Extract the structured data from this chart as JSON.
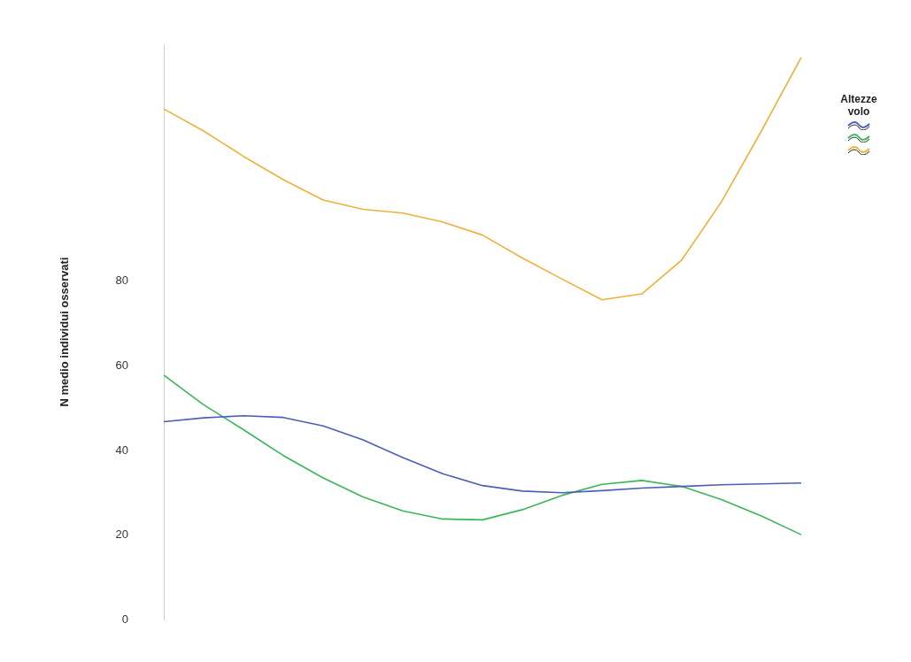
{
  "chart_data": {
    "type": "line",
    "ylabel": "N medio individui osservati",
    "legend_title": "Altezze volo",
    "grid": false,
    "marker": "none",
    "line_style": "solid",
    "tick_labels": "y",
    "categories": [
      null,
      null,
      null,
      null,
      null,
      null,
      null,
      null,
      null,
      null,
      null,
      null,
      null,
      null,
      null,
      null,
      null
    ],
    "ylim": [
      0,
      136
    ],
    "yticks": [
      0,
      20,
      40,
      60,
      80
    ],
    "series": [
      {
        "color": "#4a5fb5",
        "values": [
          46.8,
          47.7,
          48.2,
          47.8,
          45.8,
          42.5,
          38.3,
          34.5,
          31.7,
          30.4,
          30.0,
          30.5,
          31.1,
          31.5,
          31.9,
          32.1,
          32.3
        ]
      },
      {
        "color": "#3cb55a",
        "values": [
          57.8,
          50.8,
          44.9,
          38.8,
          33.5,
          29.0,
          25.7,
          23.8,
          23.6,
          26.0,
          29.4,
          32.0,
          32.9,
          31.5,
          28.4,
          24.5,
          20.1
        ]
      },
      {
        "color": "#f0b03c",
        "values": [
          120.7,
          115.5,
          109.5,
          104.0,
          99.2,
          97.0,
          96.1,
          94.0,
          90.9,
          85.5,
          80.5,
          75.6,
          77.0,
          85.0,
          98.8,
          115.5,
          132.9
        ]
      }
    ]
  }
}
